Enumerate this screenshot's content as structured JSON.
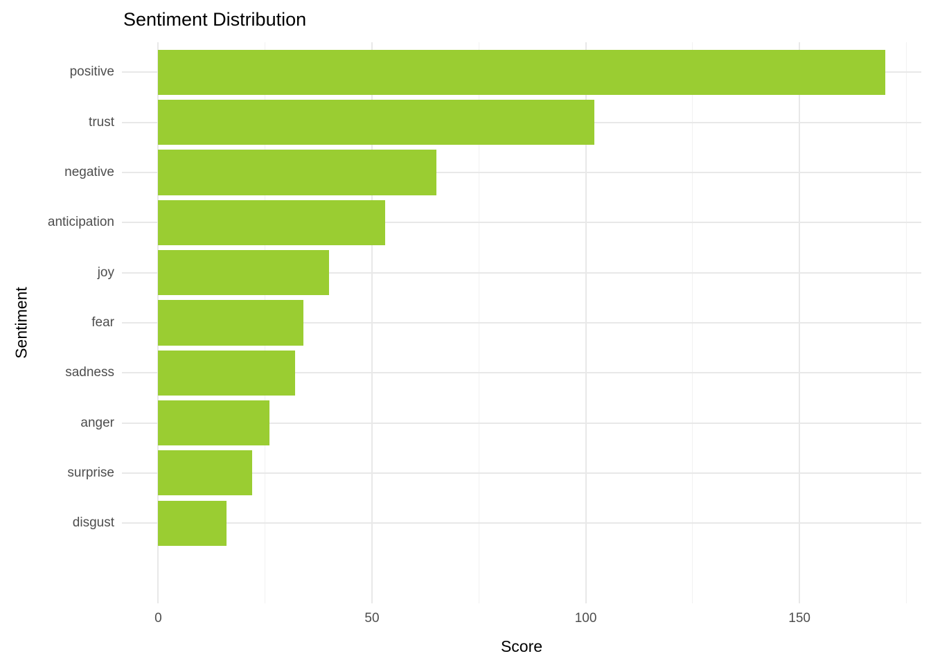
{
  "chart_data": {
    "type": "bar",
    "orientation": "horizontal",
    "title": "Sentiment Distribution",
    "xlabel": "Score",
    "ylabel": "Sentiment",
    "categories": [
      "positive",
      "trust",
      "negative",
      "anticipation",
      "joy",
      "fear",
      "sadness",
      "anger",
      "surprise",
      "disgust"
    ],
    "values": [
      170,
      102,
      65,
      53,
      40,
      34,
      32,
      26,
      22,
      16
    ],
    "x_major_ticks": [
      0,
      50,
      100,
      150
    ],
    "x_minor_gridlines": [
      25,
      75,
      125,
      175
    ],
    "xlim": [
      -8.5,
      178.5
    ],
    "grid": "on",
    "legend": "none",
    "colors": {
      "bar": "#9ACD32",
      "background": "#FFFFFF",
      "grid_major": "#E8E8E8",
      "grid_minor": "#F1F1F1",
      "axis_text": "#4D4D4D",
      "title_text": "#000000"
    }
  }
}
